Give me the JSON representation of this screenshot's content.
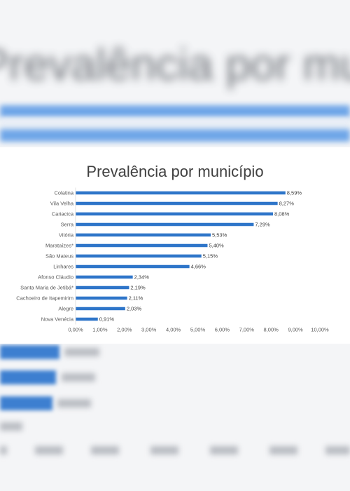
{
  "chart_data": {
    "type": "bar",
    "orientation": "horizontal",
    "title": "Prevalência por município",
    "xlabel": "",
    "ylabel": "",
    "categories": [
      "Colatina",
      "Vila Velha",
      "Cariacica",
      "Serra",
      "Vitória",
      "Marataízes*",
      "São Mateus",
      "Linhares",
      "Afonso Cláudio",
      "Santa Maria de Jetibá*",
      "Cachoeiro de Itapemirim",
      "Alegre",
      "Nova Venécia"
    ],
    "values": [
      8.59,
      8.27,
      8.08,
      7.29,
      5.53,
      5.4,
      5.15,
      4.66,
      2.34,
      2.19,
      2.11,
      2.03,
      0.91
    ],
    "value_labels": [
      "8,59%",
      "8,27%",
      "8,08%",
      "7,29%",
      "5,53%",
      "5,40%",
      "5,15%",
      "4,66%",
      "2,34%",
      "2,19%",
      "2,11%",
      "2,03%",
      "0,91%"
    ],
    "xlim": [
      0,
      10
    ],
    "x_ticks": [
      "0,00%",
      "1,00%",
      "2,00%",
      "3,00%",
      "4,00%",
      "5,00%",
      "6,00%",
      "7,00%",
      "8,00%",
      "9,00%",
      "10,00%"
    ],
    "bar_color": "#2e75c9",
    "grid": false,
    "legend": "none"
  },
  "backdrop": {
    "title_text": "Prevalência por município"
  }
}
